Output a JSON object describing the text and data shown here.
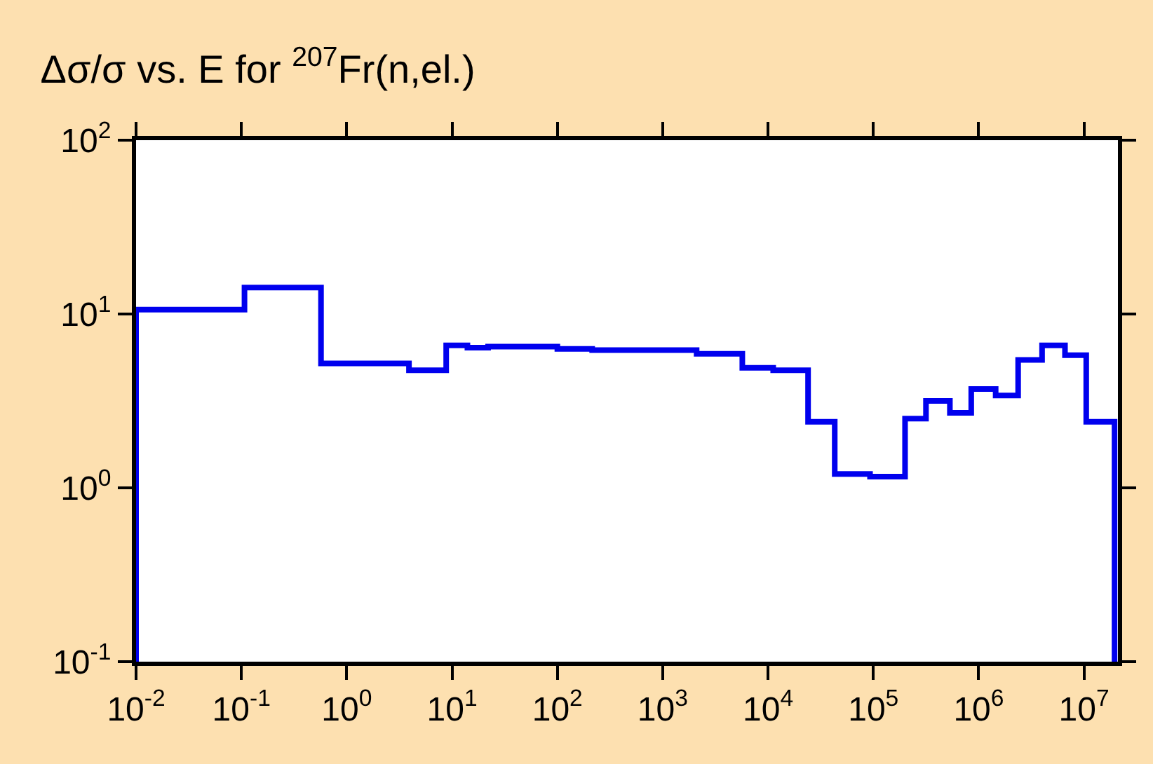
{
  "chart_data": {
    "type": "step",
    "title": "Δσ/σ vs. E for $^{207}$Fr(n,el.)",
    "x": [
      0.01,
      0.01,
      0.107,
      0.57,
      3.9,
      8.8,
      14,
      22,
      100,
      214,
      2100,
      5700,
      11200,
      24000,
      43000,
      93000,
      200000,
      316000,
      533000,
      850000,
      1450000,
      2370000,
      4000000,
      6600000,
      10500000,
      19500000
    ],
    "series": [
      {
        "color": "#0000ee",
        "values": [
          0.1,
          10.6,
          14.2,
          5.2,
          4.75,
          6.6,
          6.4,
          6.5,
          6.3,
          6.2,
          5.9,
          4.9,
          4.75,
          2.4,
          1.2,
          1.16,
          2.5,
          3.16,
          2.7,
          3.7,
          3.4,
          5.45,
          6.6,
          5.8,
          2.4,
          0.1
        ]
      }
    ],
    "log": "xy",
    "marker": "none",
    "line_style": "solid",
    "xlim": [
      0.01,
      21000000
    ],
    "ylim": [
      0.1,
      100
    ],
    "xticks": [
      {
        "value": 0.01,
        "label": "10$^{-2}$"
      },
      {
        "value": 0.1,
        "label": "10$^{-1}$"
      },
      {
        "value": 1,
        "label": "10$^{0}$"
      },
      {
        "value": 10,
        "label": "10$^{1}$"
      },
      {
        "value": 100,
        "label": "10$^{2}$"
      },
      {
        "value": 1000,
        "label": "10$^{3}$"
      },
      {
        "value": 10000,
        "label": "10$^{4}$"
      },
      {
        "value": 100000,
        "label": "10$^{5}$"
      },
      {
        "value": 1000000,
        "label": "10$^{6}$"
      },
      {
        "value": 10000000,
        "label": "10$^{7}$"
      }
    ],
    "yticks": [
      {
        "value": 0.1,
        "label": "10$^{-1}$"
      },
      {
        "value": 1,
        "label": "10$^{0}$"
      },
      {
        "value": 10,
        "label": "10$^{1}$"
      },
      {
        "value": 100,
        "label": "10$^{2}$"
      }
    ]
  }
}
